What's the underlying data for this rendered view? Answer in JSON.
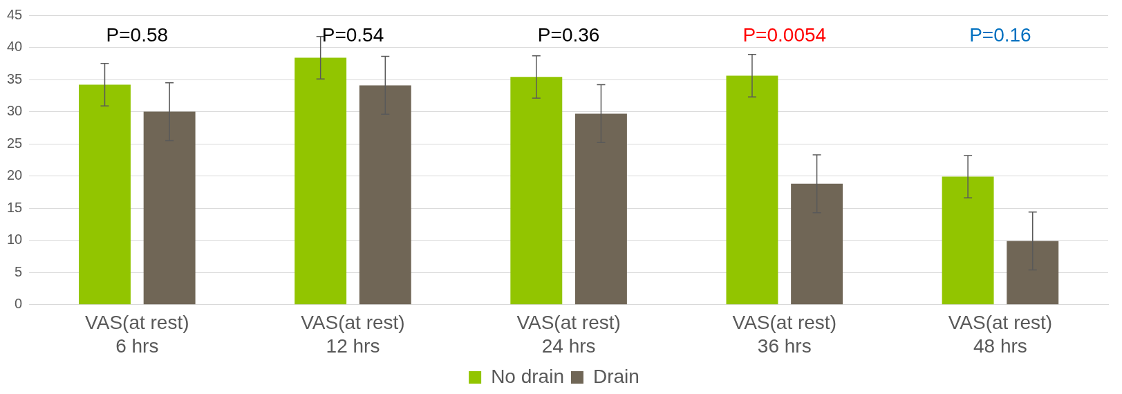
{
  "chart_data": {
    "type": "bar",
    "categories": [
      "VAS(at rest)\n6 hrs",
      "VAS(at rest)\n12 hrs",
      "VAS(at rest)\n24 hrs",
      "VAS(at rest)\n36 hrs",
      "VAS(at rest)\n48 hrs"
    ],
    "series": [
      {
        "name": "No drain",
        "color": "#92c500",
        "values": [
          34.2,
          38.4,
          35.4,
          35.6,
          19.9
        ],
        "errors": [
          3.3,
          3.3,
          3.3,
          3.3,
          3.3
        ]
      },
      {
        "name": "Drain",
        "color": "#706656",
        "values": [
          30.0,
          34.1,
          29.7,
          18.8,
          9.9
        ],
        "errors": [
          4.5,
          4.5,
          4.5,
          4.5,
          4.5
        ]
      }
    ],
    "ylim": [
      0,
      45
    ],
    "yticks": [
      0,
      5,
      10,
      15,
      20,
      25,
      30,
      35,
      40,
      45
    ],
    "grid": "y",
    "legend": "bottom",
    "annotations": [
      "P=0.58",
      "P=0.54",
      "P=0.36",
      "P=0.0054",
      "P=0.16"
    ]
  }
}
